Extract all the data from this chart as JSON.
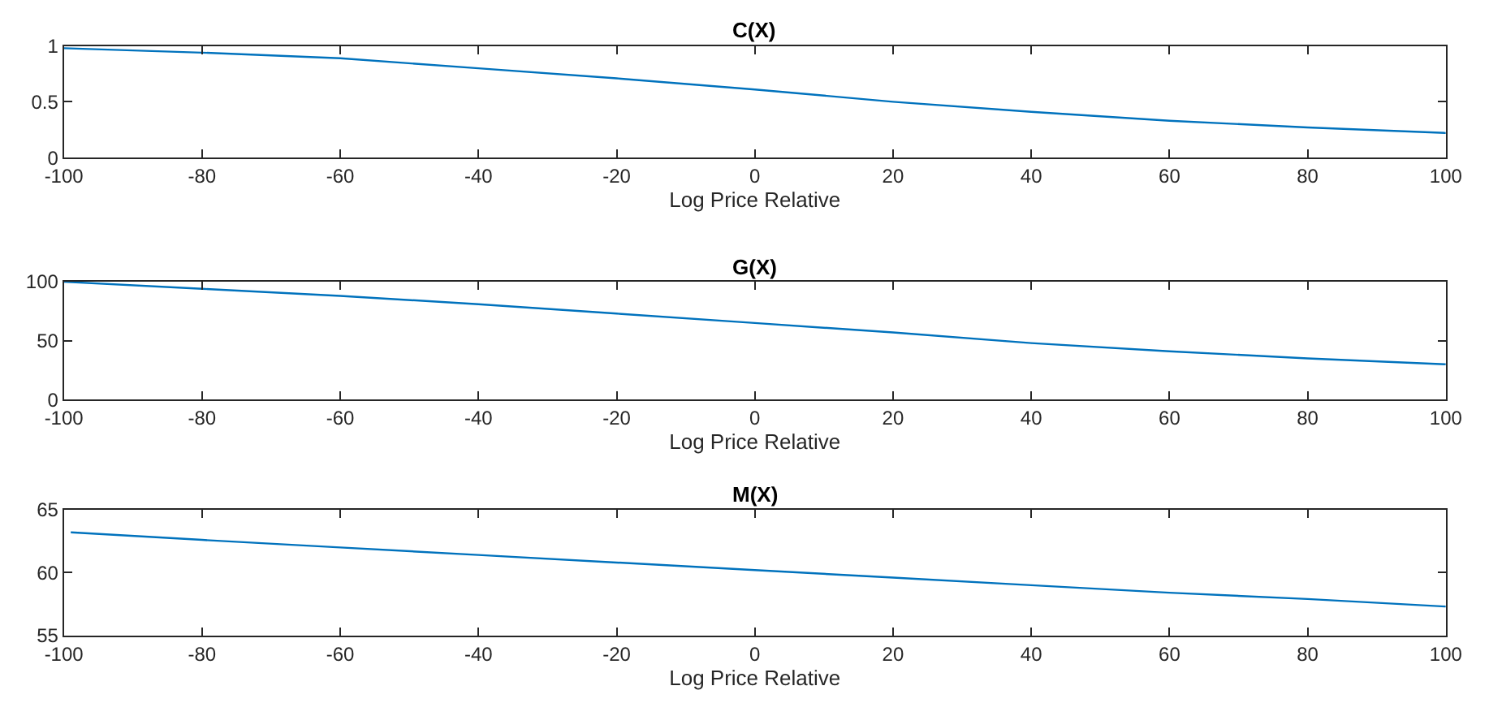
{
  "chart_data": [
    {
      "type": "line",
      "title": "C(X)",
      "xlabel": "Log Price Relative",
      "x": [
        -100,
        -80,
        -60,
        -40,
        -20,
        0,
        20,
        40,
        60,
        80,
        100
      ],
      "series": [
        {
          "color": "#0072bd",
          "values": [
            0.98,
            0.94,
            0.89,
            0.8,
            0.71,
            0.61,
            0.5,
            0.41,
            0.33,
            0.27,
            0.22
          ]
        }
      ],
      "xlim": [
        -100,
        100
      ],
      "xticks": [
        -100,
        -80,
        -60,
        -40,
        -20,
        0,
        20,
        40,
        60,
        80,
        100
      ],
      "ylim": [
        0,
        1
      ],
      "yticks": [
        0,
        0.5,
        1
      ]
    },
    {
      "type": "line",
      "title": "G(X)",
      "xlabel": "Log Price Relative",
      "x": [
        -100,
        -80,
        -60,
        -40,
        -20,
        0,
        20,
        40,
        60,
        80,
        100
      ],
      "series": [
        {
          "color": "#0072bd",
          "values": [
            100,
            94,
            88,
            81,
            73,
            65,
            57,
            48,
            41,
            35,
            30
          ]
        }
      ],
      "xlim": [
        -100,
        100
      ],
      "xticks": [
        -100,
        -80,
        -60,
        -40,
        -20,
        0,
        20,
        40,
        60,
        80,
        100
      ],
      "ylim": [
        0,
        100
      ],
      "yticks": [
        0,
        50,
        100
      ]
    },
    {
      "type": "line",
      "title": "M(X)",
      "xlabel": "Log Price Relative",
      "x": [
        -99,
        -80,
        -60,
        -40,
        -20,
        0,
        20,
        40,
        60,
        80,
        100
      ],
      "series": [
        {
          "color": "#0072bd",
          "values": [
            63.2,
            62.6,
            62.0,
            61.4,
            60.8,
            60.2,
            59.6,
            59.0,
            58.4,
            57.9,
            57.3
          ]
        }
      ],
      "xlim": [
        -100,
        100
      ],
      "xticks": [
        -100,
        -80,
        -60,
        -40,
        -20,
        0,
        20,
        40,
        60,
        80,
        100
      ],
      "ylim": [
        55,
        65
      ],
      "yticks": [
        55,
        60,
        65
      ]
    }
  ]
}
